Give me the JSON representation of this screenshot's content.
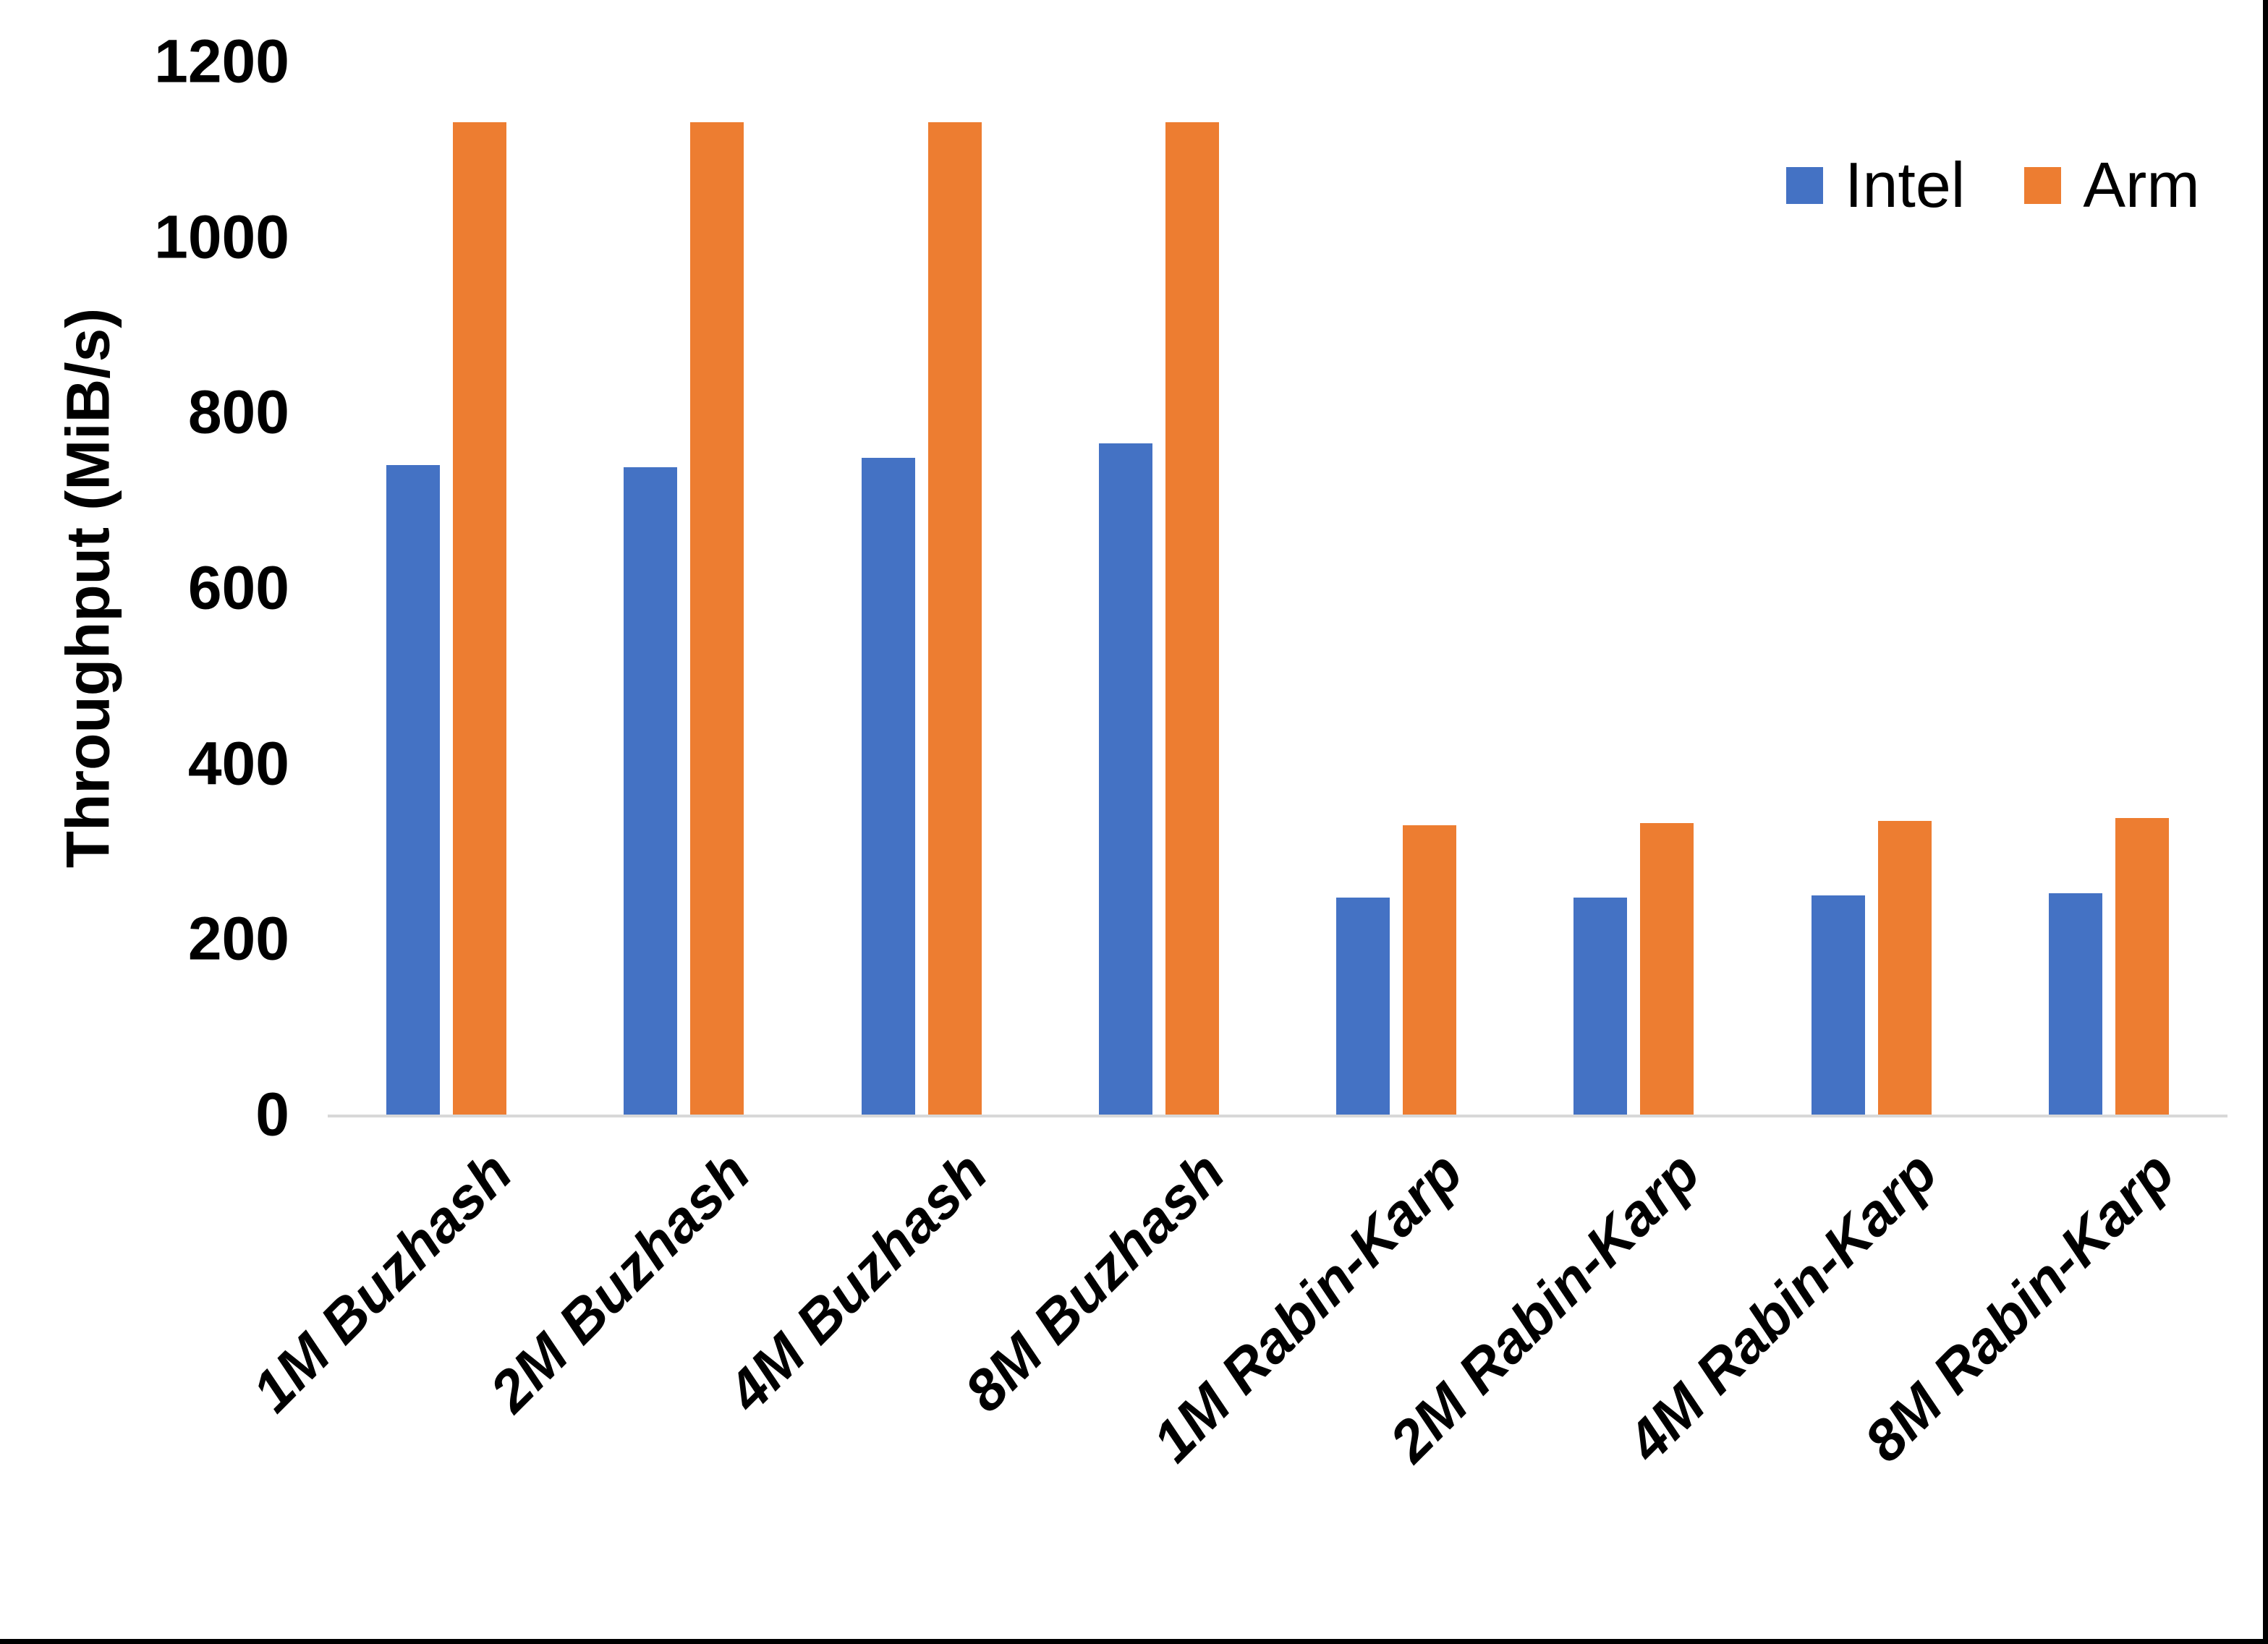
{
  "chart_data": {
    "type": "bar",
    "title": "",
    "xlabel": "",
    "ylabel": "Throughput (MiB/s)",
    "categories": [
      "1M Buzhash",
      "2M Buzhash",
      "4M Buzhash",
      "8M Buzhash",
      "1M Rabin-Karp",
      "2M Rabin-Karp",
      "4M Rabin-Karp",
      "8M Rabin-Karp"
    ],
    "series": [
      {
        "name": "Intel",
        "color": "#4472C4",
        "values": [
          740,
          738,
          748,
          765,
          247,
          247,
          250,
          252
        ]
      },
      {
        "name": "Arm",
        "color": "#ED7D31",
        "values": [
          1131,
          1131,
          1131,
          1131,
          330,
          332,
          335,
          338
        ]
      }
    ],
    "ylim": [
      0,
      1200
    ],
    "yticks": [
      0,
      200,
      400,
      600,
      800,
      1000,
      1200
    ],
    "grid": false,
    "legend_position": "top-right",
    "axis_line_color": "#D8D8D8",
    "text_color": "#000000"
  }
}
